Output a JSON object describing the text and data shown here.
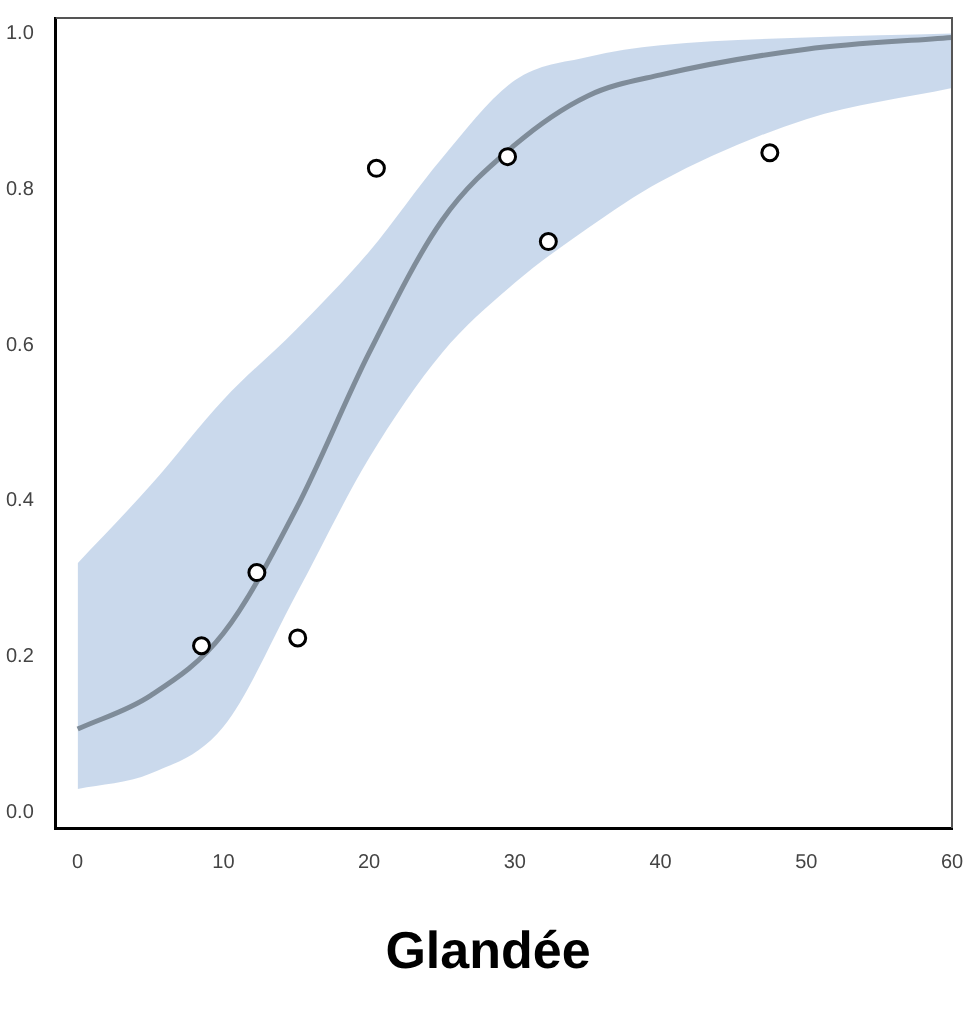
{
  "chart_data": {
    "type": "scatter",
    "title": "Glandée",
    "xlim": [
      -1.5,
      60
    ],
    "xticks": [
      0,
      10,
      20,
      30,
      40,
      50,
      60
    ],
    "ylim": [
      -0.02,
      1.02
    ],
    "yticks": [
      {
        "value": 0,
        "label": "0.0"
      },
      {
        "value": 0.2,
        "label": "0.2"
      },
      {
        "value": 0.4,
        "label": "0.4"
      },
      {
        "value": 0.6,
        "label": "0.6"
      },
      {
        "value": 0.8,
        "label": "0.8"
      },
      {
        "value": 1,
        "label": "1.0"
      }
    ],
    "grid": false,
    "legend": false,
    "series": [
      {
        "type": "line",
        "color": "#7f8c99",
        "x": [
          0,
          5,
          10,
          15,
          20,
          25,
          30,
          35,
          40,
          50,
          60
        ],
        "values": [
          0.107,
          0.15,
          0.23,
          0.39,
          0.59,
          0.76,
          0.857,
          0.92,
          0.947,
          0.98,
          0.995
        ],
        "lower": [
          0.03,
          0.05,
          0.11,
          0.28,
          0.455,
          0.59,
          0.68,
          0.75,
          0.81,
          0.89,
          0.93
        ],
        "upper": [
          0.32,
          0.42,
          0.53,
          0.62,
          0.72,
          0.84,
          0.94,
          0.97,
          0.985,
          0.995,
          1.0
        ]
      },
      {
        "color": "#000000",
        "marker": "circle",
        "x": [
          8.5,
          12.3,
          15.1,
          20.5,
          29.5,
          32.3,
          47.5
        ],
        "values": [
          0.214,
          0.308,
          0.224,
          0.827,
          0.842,
          0.733,
          0.847
        ]
      }
    ]
  }
}
